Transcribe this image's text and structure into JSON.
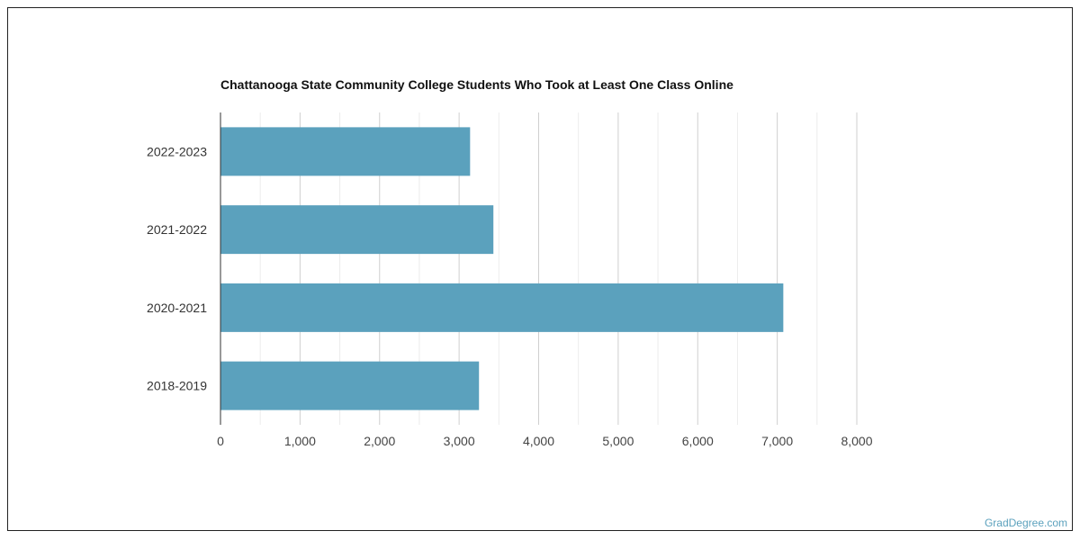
{
  "chart_data": {
    "type": "bar",
    "orientation": "horizontal",
    "title": "Chattanooga State Community College Students Who Took at Least One Class Online",
    "categories": [
      "2022-2023",
      "2021-2022",
      "2020-2021",
      "2018-2019"
    ],
    "values": [
      3138,
      3431,
      7076,
      3250
    ],
    "xlim": [
      0,
      8000
    ],
    "xticks": [
      "0",
      "1,000",
      "2,000",
      "3,000",
      "4,000",
      "5,000",
      "6,000",
      "7,000",
      "8,000"
    ],
    "xlabel": "",
    "ylabel": "",
    "grid": true,
    "bar_color": "#5ba1bd"
  },
  "credit": "GradDegree.com"
}
